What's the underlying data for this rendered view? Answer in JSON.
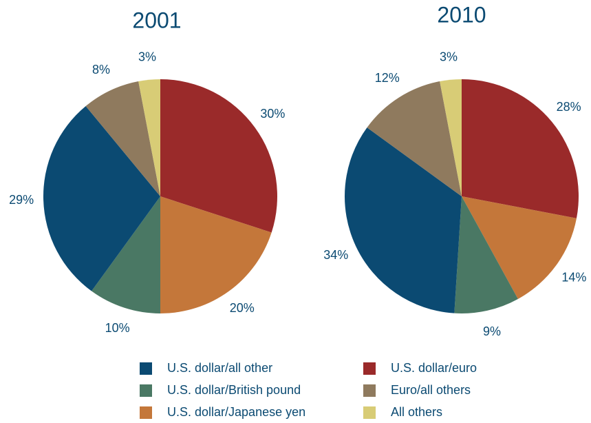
{
  "legend": {
    "categories": [
      "U.S. dollar/euro",
      "U.S. dollar/Japanese yen",
      "U.S. dollar/British pound",
      "U.S. dollar/all other",
      "Euro/all others",
      "All others"
    ],
    "colors": [
      "#9a2a2a",
      "#c4773a",
      "#4a7864",
      "#0b4a72",
      "#8f7a5e",
      "#d8cc76"
    ]
  },
  "chart_data": [
    {
      "type": "pie",
      "title": "2001",
      "values": [
        30,
        20,
        10,
        29,
        8,
        3
      ],
      "value_labels": [
        "30%",
        "20%",
        "10%",
        "29%",
        "8%",
        "3%"
      ]
    },
    {
      "type": "pie",
      "title": "2010",
      "values": [
        28,
        14,
        9,
        34,
        12,
        3
      ],
      "value_labels": [
        "28%",
        "14%",
        "9%",
        "34%",
        "12%",
        "3%"
      ]
    }
  ]
}
